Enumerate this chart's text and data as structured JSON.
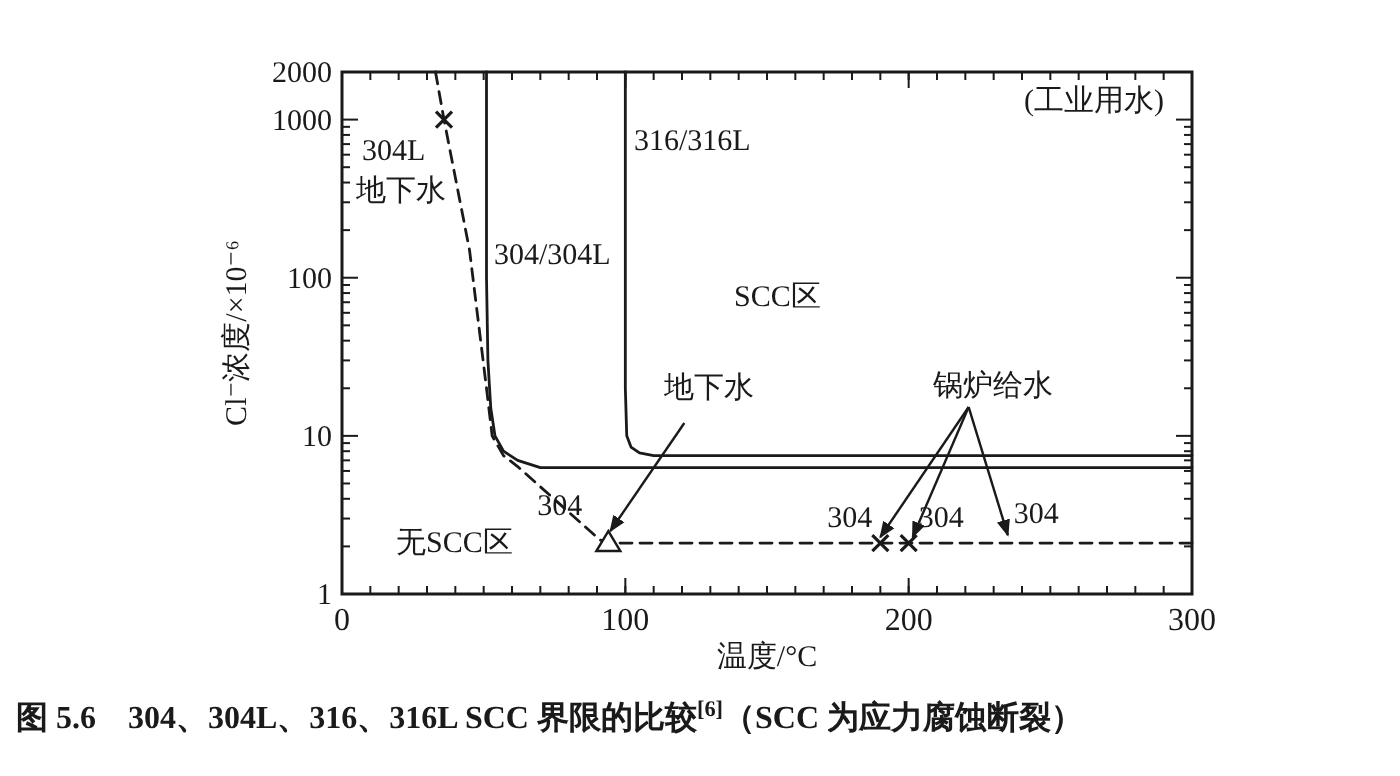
{
  "chart_data": {
    "type": "line",
    "title": "图 5.6　304、304L、316、316L SCC 界限的比较$^{[6]}$（SCC 为应力腐蚀断裂）",
    "xlabel": "温度/°C",
    "ylabel": "Cl⁻浓度/×10⁻⁶",
    "log": "y",
    "xlim": [
      0,
      300
    ],
    "ylim": [
      1,
      2000
    ],
    "xticks": [
      0,
      100,
      200,
      300
    ],
    "yticks": [
      1,
      10,
      100,
      1000,
      2000
    ],
    "grid": false,
    "series": [
      {
        "name": "304/304L",
        "color": "#1a1a1a",
        "line_style": "solid",
        "x": [
          51,
          51,
          51.5,
          52.5,
          54,
          57,
          62,
          70,
          300
        ],
        "values": [
          2000,
          100,
          30,
          15,
          10,
          8,
          7,
          6.3,
          6.3
        ]
      },
      {
        "name": "316/316L",
        "color": "#1a1a1a",
        "line_style": "solid",
        "x": [
          100,
          100,
          100.5,
          102,
          105,
          110,
          300
        ],
        "values": [
          2000,
          20,
          10,
          8.5,
          7.8,
          7.5,
          7.5
        ]
      },
      {
        "color": "#1a1a1a",
        "line_style": "dashed",
        "x": [
          33,
          36,
          45,
          51,
          53,
          57,
          62,
          91,
          94,
          300
        ],
        "values": [
          2000,
          1000,
          150,
          20,
          10,
          7.5,
          6.4,
          2.2,
          2.1,
          2.1
        ]
      },
      {
        "type": "scatter",
        "color": "#1a1a1a",
        "marker": "triangle",
        "x": [
          94
        ],
        "values": [
          2.1
        ]
      },
      {
        "type": "scatter",
        "color": "#1a1a1a",
        "marker": "cross",
        "x": [
          36,
          190,
          200
        ],
        "values": [
          1000,
          2.1,
          2.1
        ]
      }
    ],
    "annotations": [
      "(工业用水)",
      "SCC区",
      "无SCC区",
      "304L",
      "地下水",
      {
        "text": "地下水",
        "x": 94,
        "y": 2.1
      },
      {
        "text": "304",
        "x": 94,
        "y": 2.1
      },
      {
        "text": "锅炉给水",
        "x": 200,
        "y": 2.1
      },
      {
        "text": "304",
        "x": 190,
        "y": 2.1
      },
      {
        "text": "304",
        "x": 200,
        "y": 2.1
      },
      {
        "text": "304",
        "x": 235,
        "y": 2.1
      }
    ]
  }
}
